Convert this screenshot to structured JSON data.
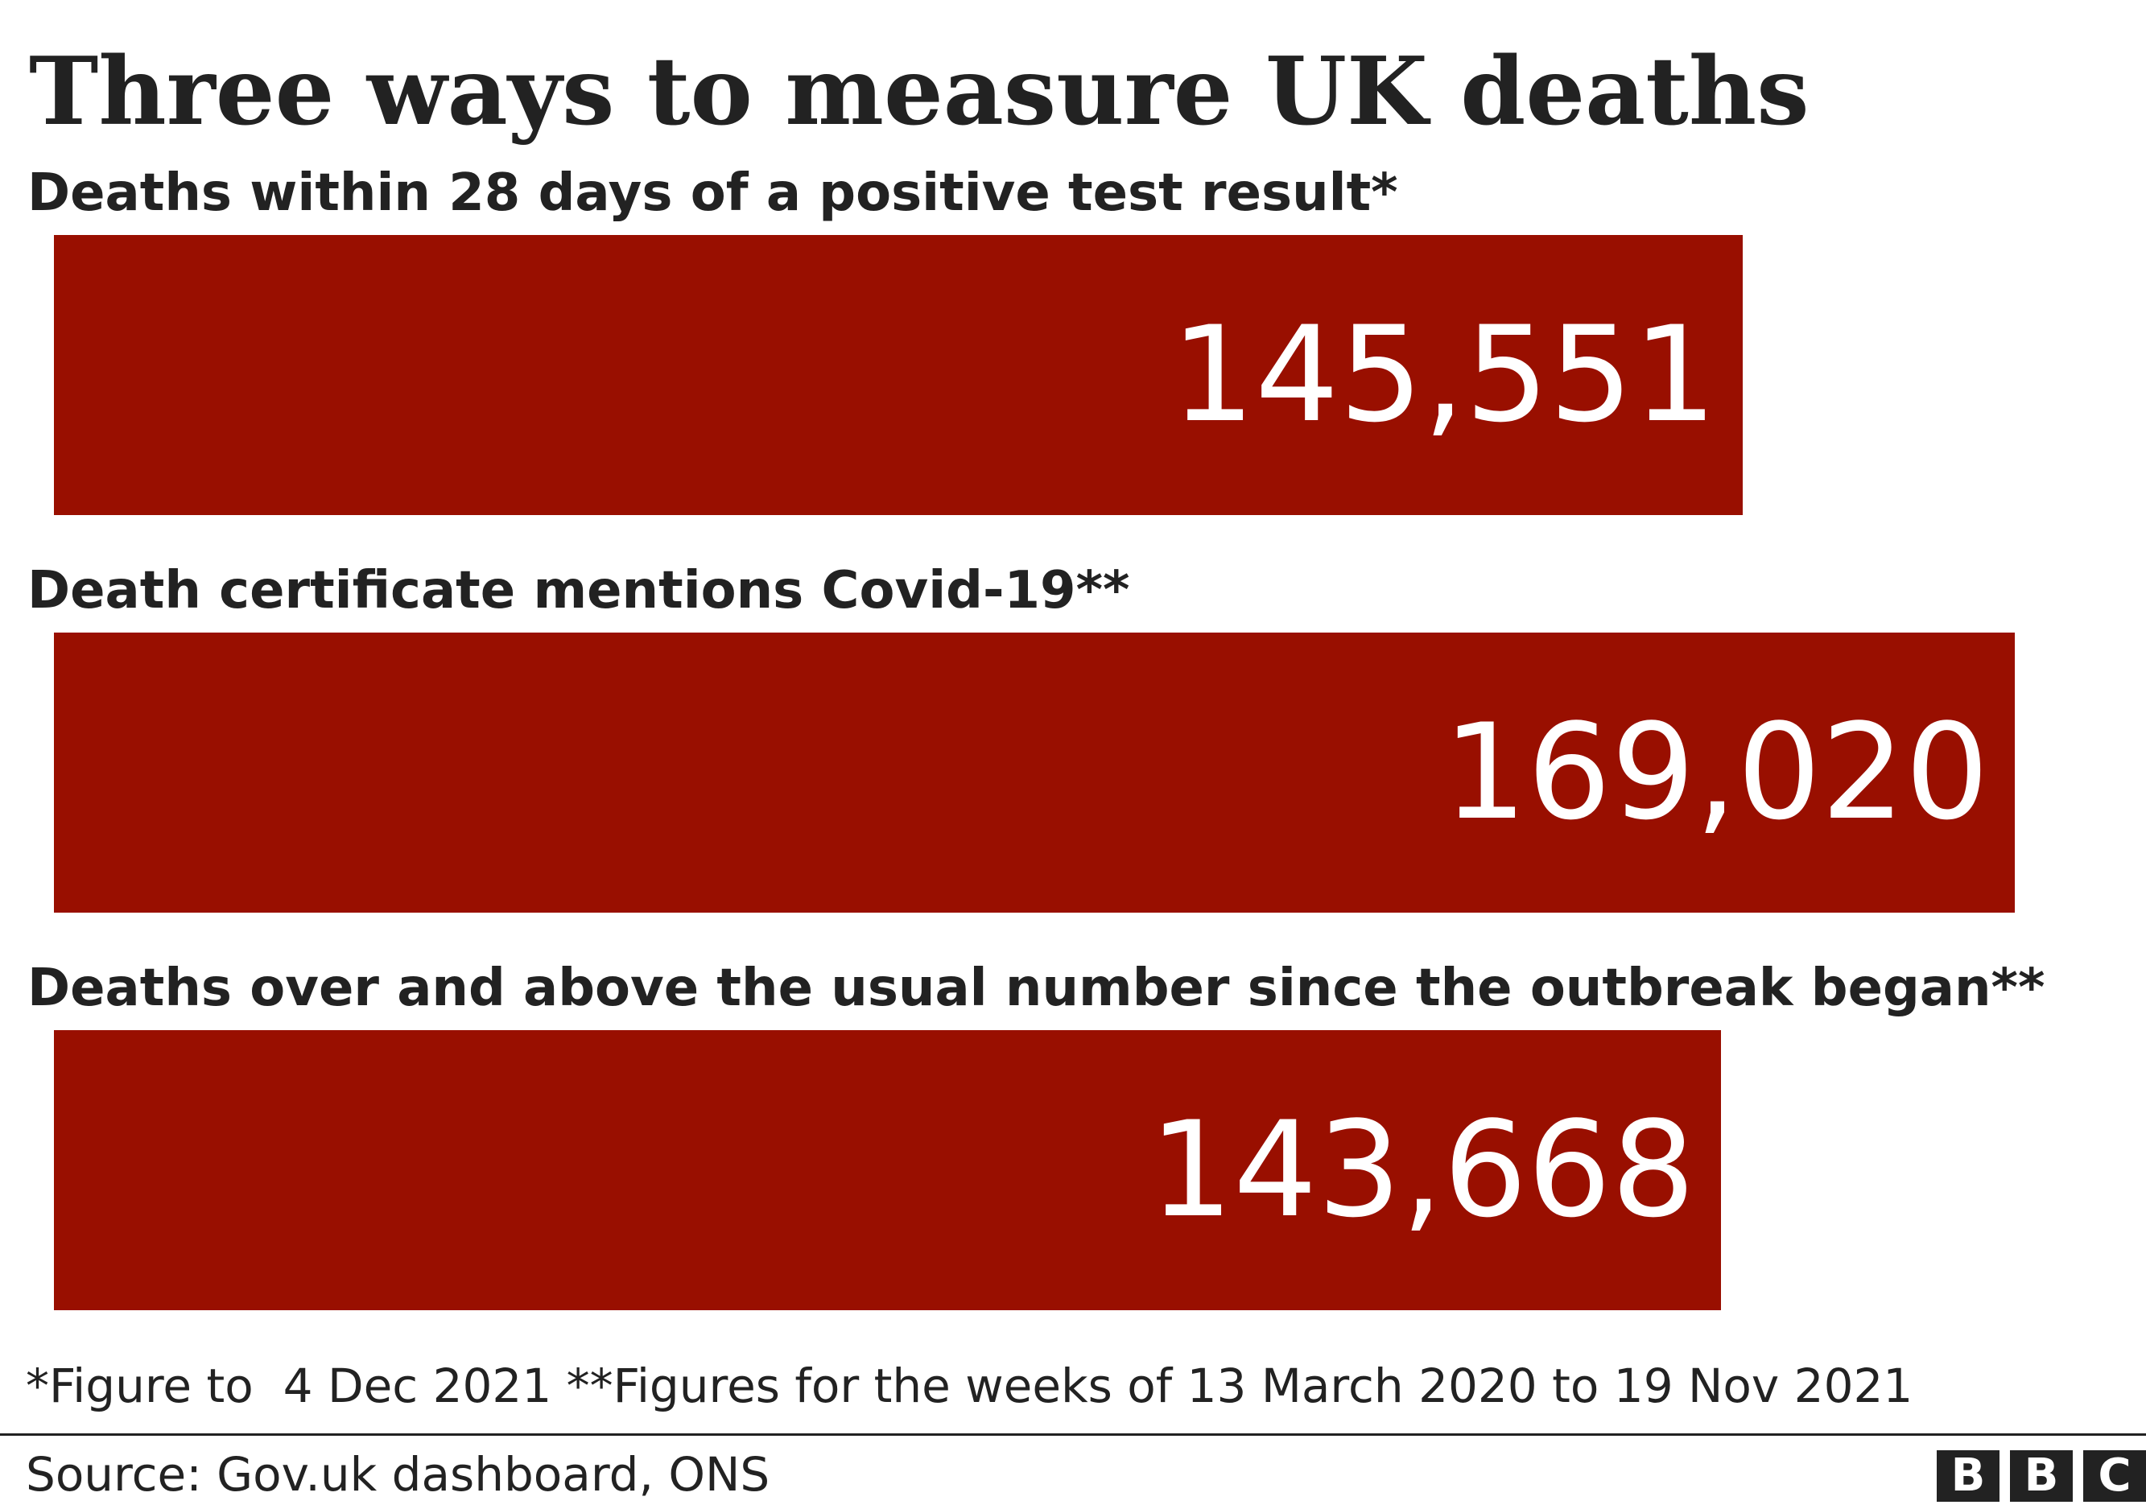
{
  "header": {
    "title": "Three ways to measure UK deaths"
  },
  "chart_data": {
    "type": "bar",
    "orientation": "horizontal",
    "title": "Three ways to measure UK deaths",
    "categories": [
      "Deaths within 28 days of a positive test result*",
      "Death certificate mentions Covid-19**",
      "Deaths over and above the usual number since the outbreak began**"
    ],
    "values": [
      145551,
      169020,
      143668
    ],
    "value_labels": [
      "145,551",
      "169,020",
      "143,668"
    ],
    "xlim": [
      0,
      169020
    ],
    "grid": false,
    "legend": "none",
    "bar_color": "#990f00",
    "value_label_color": "#ffffff"
  },
  "footer": {
    "footnote": "*Figure to  4 Dec 2021 **Figures for the weeks of 13 March 2020 to 19 Nov 2021",
    "source": "Source: Gov.uk dashboard, ONS",
    "logo_letters": [
      "B",
      "B",
      "C"
    ]
  },
  "colors": {
    "text": "#222222",
    "bar": "#990f00",
    "background": "#ffffff"
  }
}
